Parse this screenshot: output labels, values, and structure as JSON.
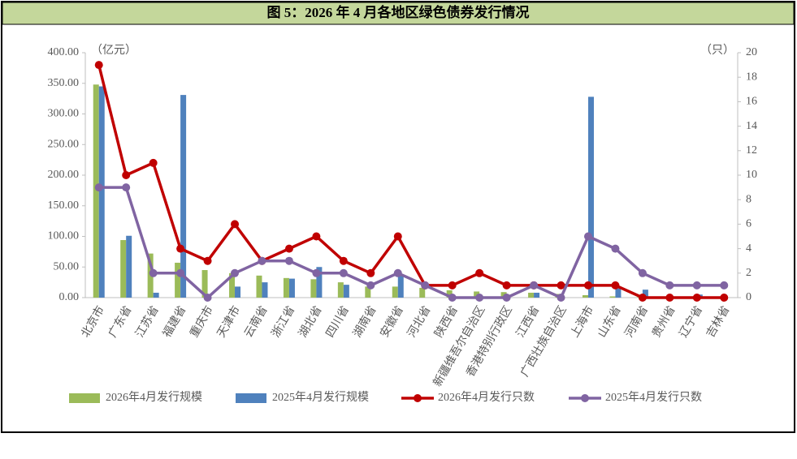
{
  "chart_data": {
    "type": "combo",
    "title": "图 5：2026 年 4 月各地区绿色债券发行情况",
    "y_unit": "（亿元）",
    "y2_unit": "（只）",
    "categories": [
      "北京市",
      "广东省",
      "江苏省",
      "福建省",
      "重庆市",
      "天津市",
      "云南省",
      "浙江省",
      "湖北省",
      "四川省",
      "湖南省",
      "安徽省",
      "河北省",
      "陕西省",
      "新疆维吾尔自治区",
      "香港特别行政区",
      "江西省",
      "广西壮族自治区",
      "上海市",
      "山东省",
      "河南省",
      "贵州省",
      "辽宁省",
      "吉林省"
    ],
    "series": [
      {
        "name": "2026年4月发行规模",
        "kind": "bar",
        "axis": "y",
        "color": "#9bbb59",
        "values": [
          348,
          94,
          72,
          57,
          45,
          40,
          36,
          32,
          30,
          25,
          18,
          18,
          16,
          12,
          10,
          9,
          8,
          6,
          4,
          2,
          1,
          1,
          0.5,
          0.5
        ]
      },
      {
        "name": "2025年4月发行规模",
        "kind": "bar",
        "axis": "y",
        "color": "#4f81bd",
        "values": [
          345,
          101,
          8,
          331,
          0,
          18,
          25,
          31,
          50,
          21,
          0,
          38,
          0,
          0,
          0,
          0,
          8,
          0,
          328,
          15,
          13,
          0,
          5,
          0
        ]
      },
      {
        "name": "2026年4月发行只数",
        "kind": "line",
        "axis": "y2",
        "color": "#c00000",
        "values": [
          19,
          10,
          11,
          4,
          3,
          6,
          3,
          4,
          5,
          3,
          2,
          5,
          1,
          1,
          2,
          1,
          1,
          1,
          1,
          1,
          0,
          0,
          0,
          0
        ]
      },
      {
        "name": "2025年4月发行只数",
        "kind": "line",
        "axis": "y2",
        "color": "#8064a2",
        "values": [
          9,
          9,
          2,
          2,
          0,
          2,
          3,
          3,
          2,
          2,
          1,
          2,
          1,
          0,
          0,
          0,
          1,
          0,
          5,
          4,
          2,
          1,
          1,
          1
        ]
      }
    ],
    "ylim": [
      0,
      400
    ],
    "yticks": [
      {
        "value": 0,
        "label": "0.00"
      },
      {
        "value": 50,
        "label": "50.00"
      },
      {
        "value": 100,
        "label": "100.00"
      },
      {
        "value": 150,
        "label": "150.00"
      },
      {
        "value": 200,
        "label": "200.00"
      },
      {
        "value": 250,
        "label": "250.00"
      },
      {
        "value": 300,
        "label": "300.00"
      },
      {
        "value": 350,
        "label": "350.00"
      },
      {
        "value": 400,
        "label": "400.00"
      }
    ],
    "y2lim": [
      0,
      20
    ],
    "y2ticks": [
      0,
      2,
      4,
      6,
      8,
      10,
      12,
      14,
      16,
      18,
      20
    ],
    "legend": "bottom"
  }
}
